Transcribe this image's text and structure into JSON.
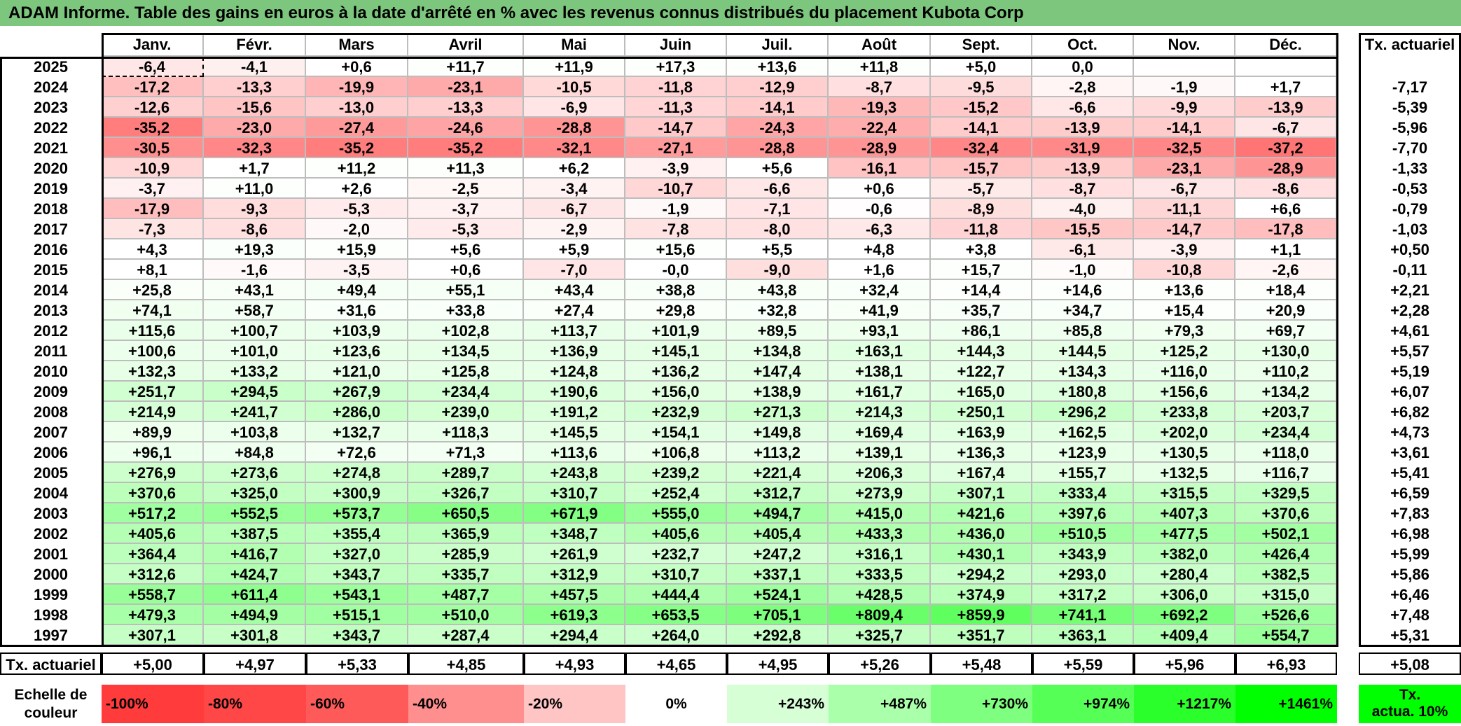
{
  "title": "ADAM Informe. Table des gains en euros à la date d'arrêté en % avec les revenus connus distribués du placement Kubota Corp",
  "header": {
    "months": [
      "Janv.",
      "Févr.",
      "Mars",
      "Avril",
      "Mai",
      "Juin",
      "Juil.",
      "Août",
      "Sept.",
      "Oct.",
      "Nov.",
      "Déc."
    ],
    "rate_label": "Tx. actuariel"
  },
  "rows": [
    {
      "year": "2025",
      "values": [
        "-6,4",
        "-4,1",
        "+0,6",
        "+11,7",
        "+11,9",
        "+17,3",
        "+13,6",
        "+11,8",
        "+5,0",
        "0,0",
        "",
        ""
      ],
      "rate": ""
    },
    {
      "year": "2024",
      "values": [
        "-17,2",
        "-13,3",
        "-19,9",
        "-23,1",
        "-10,5",
        "-11,8",
        "-12,9",
        "-8,7",
        "-9,5",
        "-2,8",
        "-1,9",
        "+1,7"
      ],
      "rate": "-7,17"
    },
    {
      "year": "2023",
      "values": [
        "-12,6",
        "-15,6",
        "-13,0",
        "-13,3",
        "-6,9",
        "-11,3",
        "-14,1",
        "-19,3",
        "-15,2",
        "-6,6",
        "-9,9",
        "-13,9"
      ],
      "rate": "-5,39"
    },
    {
      "year": "2022",
      "values": [
        "-35,2",
        "-23,0",
        "-27,4",
        "-24,6",
        "-28,8",
        "-14,7",
        "-24,3",
        "-22,4",
        "-14,1",
        "-13,9",
        "-14,1",
        "-6,7"
      ],
      "rate": "-5,96"
    },
    {
      "year": "2021",
      "values": [
        "-30,5",
        "-32,3",
        "-35,2",
        "-35,2",
        "-32,1",
        "-27,1",
        "-28,8",
        "-28,9",
        "-32,4",
        "-31,9",
        "-32,5",
        "-37,2"
      ],
      "rate": "-7,70"
    },
    {
      "year": "2020",
      "values": [
        "-10,9",
        "+1,7",
        "+11,2",
        "+11,3",
        "+6,2",
        "-3,9",
        "+5,6",
        "-16,1",
        "-15,7",
        "-13,9",
        "-23,1",
        "-28,9"
      ],
      "rate": "-1,33"
    },
    {
      "year": "2019",
      "values": [
        "-3,7",
        "+11,0",
        "+2,6",
        "-2,5",
        "-3,4",
        "-10,7",
        "-6,6",
        "+0,6",
        "-5,7",
        "-8,7",
        "-6,7",
        "-8,6"
      ],
      "rate": "-0,53"
    },
    {
      "year": "2018",
      "values": [
        "-17,9",
        "-9,3",
        "-5,3",
        "-3,7",
        "-6,7",
        "-1,9",
        "-7,1",
        "-0,6",
        "-8,9",
        "-4,0",
        "-11,1",
        "+6,6"
      ],
      "rate": "-0,79"
    },
    {
      "year": "2017",
      "values": [
        "-7,3",
        "-8,6",
        "-2,0",
        "-5,3",
        "-2,9",
        "-7,8",
        "-8,0",
        "-6,3",
        "-11,8",
        "-15,5",
        "-14,7",
        "-17,8"
      ],
      "rate": "-1,03"
    },
    {
      "year": "2016",
      "values": [
        "+4,3",
        "+19,3",
        "+15,9",
        "+5,6",
        "+5,9",
        "+15,6",
        "+5,5",
        "+4,8",
        "+3,8",
        "-6,1",
        "-3,9",
        "+1,1"
      ],
      "rate": "+0,50"
    },
    {
      "year": "2015",
      "values": [
        "+8,1",
        "-1,6",
        "-3,5",
        "+0,6",
        "-7,0",
        "-0,0",
        "-9,0",
        "+1,6",
        "+15,7",
        "-1,0",
        "-10,8",
        "-2,6"
      ],
      "rate": "-0,11"
    },
    {
      "year": "2014",
      "values": [
        "+25,8",
        "+43,1",
        "+49,4",
        "+55,1",
        "+43,4",
        "+38,8",
        "+43,8",
        "+32,4",
        "+14,4",
        "+14,6",
        "+13,6",
        "+18,4"
      ],
      "rate": "+2,21"
    },
    {
      "year": "2013",
      "values": [
        "+74,1",
        "+58,7",
        "+31,6",
        "+33,8",
        "+27,4",
        "+29,8",
        "+32,8",
        "+41,9",
        "+35,7",
        "+34,7",
        "+15,4",
        "+20,9"
      ],
      "rate": "+2,28"
    },
    {
      "year": "2012",
      "values": [
        "+115,6",
        "+100,7",
        "+103,9",
        "+102,8",
        "+113,7",
        "+101,9",
        "+89,5",
        "+93,1",
        "+86,1",
        "+85,8",
        "+79,3",
        "+69,7"
      ],
      "rate": "+4,61"
    },
    {
      "year": "2011",
      "values": [
        "+100,6",
        "+101,0",
        "+123,6",
        "+134,5",
        "+136,9",
        "+145,1",
        "+134,8",
        "+163,1",
        "+144,3",
        "+144,5",
        "+125,2",
        "+130,0"
      ],
      "rate": "+5,57"
    },
    {
      "year": "2010",
      "values": [
        "+132,3",
        "+133,2",
        "+121,0",
        "+125,8",
        "+124,8",
        "+136,2",
        "+147,4",
        "+138,1",
        "+122,7",
        "+134,3",
        "+116,0",
        "+110,2"
      ],
      "rate": "+5,19"
    },
    {
      "year": "2009",
      "values": [
        "+251,7",
        "+294,5",
        "+267,9",
        "+234,4",
        "+190,6",
        "+156,0",
        "+138,9",
        "+161,7",
        "+165,0",
        "+180,8",
        "+156,6",
        "+134,2"
      ],
      "rate": "+6,07"
    },
    {
      "year": "2008",
      "values": [
        "+214,9",
        "+241,7",
        "+286,0",
        "+239,0",
        "+191,2",
        "+232,9",
        "+271,3",
        "+214,3",
        "+250,1",
        "+296,2",
        "+233,8",
        "+203,7"
      ],
      "rate": "+6,82"
    },
    {
      "year": "2007",
      "values": [
        "+89,9",
        "+103,8",
        "+132,7",
        "+118,3",
        "+145,5",
        "+154,1",
        "+149,8",
        "+169,4",
        "+163,9",
        "+162,5",
        "+202,0",
        "+234,4"
      ],
      "rate": "+4,73"
    },
    {
      "year": "2006",
      "values": [
        "+96,1",
        "+84,8",
        "+72,6",
        "+71,3",
        "+113,6",
        "+106,8",
        "+113,2",
        "+139,1",
        "+136,3",
        "+123,9",
        "+130,5",
        "+118,0"
      ],
      "rate": "+3,61"
    },
    {
      "year": "2005",
      "values": [
        "+276,9",
        "+273,6",
        "+274,8",
        "+289,7",
        "+243,8",
        "+239,2",
        "+221,4",
        "+206,3",
        "+167,4",
        "+155,7",
        "+132,5",
        "+116,7"
      ],
      "rate": "+5,41"
    },
    {
      "year": "2004",
      "values": [
        "+370,6",
        "+325,0",
        "+300,9",
        "+326,7",
        "+310,7",
        "+252,4",
        "+312,7",
        "+273,9",
        "+307,1",
        "+333,4",
        "+315,5",
        "+329,5"
      ],
      "rate": "+6,59"
    },
    {
      "year": "2003",
      "values": [
        "+517,2",
        "+552,5",
        "+573,7",
        "+650,5",
        "+671,9",
        "+555,0",
        "+494,7",
        "+415,0",
        "+421,6",
        "+397,6",
        "+407,3",
        "+370,6"
      ],
      "rate": "+7,83"
    },
    {
      "year": "2002",
      "values": [
        "+405,6",
        "+387,5",
        "+355,4",
        "+365,9",
        "+348,7",
        "+405,6",
        "+405,4",
        "+433,3",
        "+436,0",
        "+510,5",
        "+477,5",
        "+502,1"
      ],
      "rate": "+6,98"
    },
    {
      "year": "2001",
      "values": [
        "+364,4",
        "+416,7",
        "+327,0",
        "+285,9",
        "+261,9",
        "+232,7",
        "+247,2",
        "+316,1",
        "+430,1",
        "+343,9",
        "+382,0",
        "+426,4"
      ],
      "rate": "+5,99"
    },
    {
      "year": "2000",
      "values": [
        "+312,6",
        "+424,7",
        "+343,7",
        "+335,7",
        "+312,9",
        "+310,7",
        "+337,1",
        "+333,5",
        "+294,2",
        "+293,0",
        "+280,4",
        "+382,5"
      ],
      "rate": "+5,86"
    },
    {
      "year": "1999",
      "values": [
        "+558,7",
        "+611,4",
        "+543,1",
        "+487,7",
        "+457,5",
        "+444,4",
        "+524,1",
        "+428,5",
        "+374,9",
        "+317,2",
        "+306,0",
        "+315,0"
      ],
      "rate": "+6,46"
    },
    {
      "year": "1998",
      "values": [
        "+479,3",
        "+494,9",
        "+515,1",
        "+510,0",
        "+619,3",
        "+653,5",
        "+705,1",
        "+809,4",
        "+859,9",
        "+741,1",
        "+692,2",
        "+526,6"
      ],
      "rate": "+7,48"
    },
    {
      "year": "1997",
      "values": [
        "+307,1",
        "+301,8",
        "+343,7",
        "+287,4",
        "+294,4",
        "+264,0",
        "+292,8",
        "+325,7",
        "+351,7",
        "+363,1",
        "+409,4",
        "+554,7"
      ],
      "rate": "+5,31"
    }
  ],
  "footer": {
    "label": "Tx. actuariel",
    "values": [
      "+5,00",
      "+4,97",
      "+5,33",
      "+4,85",
      "+4,93",
      "+4,65",
      "+4,95",
      "+5,26",
      "+5,48",
      "+5,59",
      "+5,96",
      "+6,93"
    ],
    "rate": "+5,08"
  },
  "legend": {
    "label_line1": "Echelle de",
    "label_line2": "couleur",
    "steps": [
      {
        "text": "-100%",
        "color": "#ff3b3b"
      },
      {
        "text": "-80%",
        "color": "#ff4747"
      },
      {
        "text": "-60%",
        "color": "#ff5a5a"
      },
      {
        "text": "-40%",
        "color": "#ff8e8e"
      },
      {
        "text": "-20%",
        "color": "#ffc4c4"
      },
      {
        "text": "0%",
        "color": "#ffffff"
      },
      {
        "text": "+243%",
        "color": "#d6ffd6"
      },
      {
        "text": "+487%",
        "color": "#aaffaa"
      },
      {
        "text": "+730%",
        "color": "#7fff7f"
      },
      {
        "text": "+974%",
        "color": "#55ff55"
      },
      {
        "text": "+1217%",
        "color": "#2bff2b"
      },
      {
        "text": "+1461%",
        "color": "#00ff00"
      }
    ],
    "rate_line1": "Tx.",
    "rate_line2": "actua. 10%",
    "rate_color": "#00ff00"
  }
}
